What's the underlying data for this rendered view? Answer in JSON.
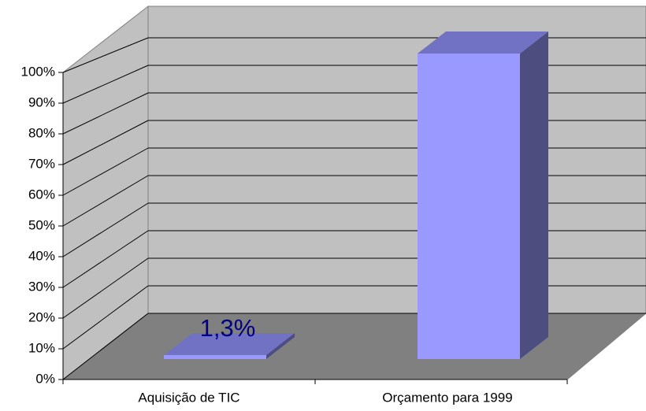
{
  "chart_data": {
    "type": "bar3d",
    "categories": [
      "Aquisição de TIC",
      "Orçamento para 1999"
    ],
    "values": [
      1.3,
      100
    ],
    "value_labels": [
      "1,3%",
      null
    ],
    "color": "#9999ff",
    "ylim": [
      0,
      100
    ],
    "yticks": [
      {
        "value": 0,
        "label": "0%"
      },
      {
        "value": 10,
        "label": "10%"
      },
      {
        "value": 20,
        "label": "20%"
      },
      {
        "value": 30,
        "label": "30%"
      },
      {
        "value": 40,
        "label": "40%"
      },
      {
        "value": 50,
        "label": "50%"
      },
      {
        "value": 60,
        "label": "60%"
      },
      {
        "value": 70,
        "label": "70%"
      },
      {
        "value": 80,
        "label": "80%"
      },
      {
        "value": 90,
        "label": "90%"
      },
      {
        "value": 100,
        "label": "100%"
      }
    ],
    "grid": true
  }
}
